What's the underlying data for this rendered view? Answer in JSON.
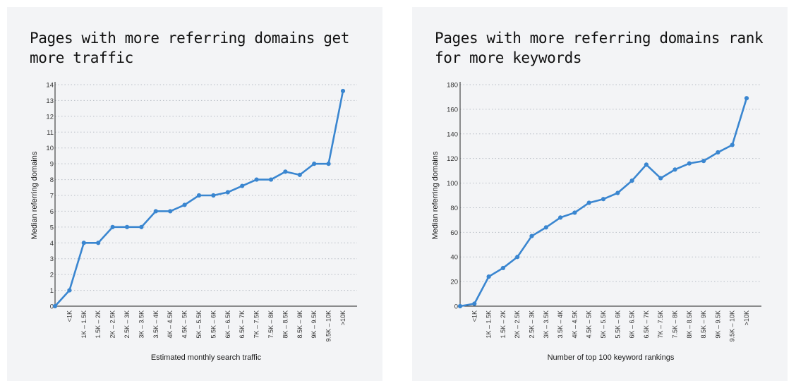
{
  "chart_data": [
    {
      "type": "line",
      "title": "Pages with more referring domains get more traffic",
      "xlabel": "Estimated monthly search traffic",
      "ylabel": "Median referring domains",
      "ylim": [
        0,
        14
      ],
      "yticks": [
        0,
        1,
        2,
        3,
        4,
        5,
        6,
        7,
        8,
        9,
        10,
        11,
        12,
        13,
        14
      ],
      "grid": "horizontal-dotted",
      "categories": [
        "",
        "<1K",
        "1K – 1.5K",
        "1.5K – 2K",
        "2K – 2.5K",
        "2.5K – 3K",
        "3K – 3.5K",
        "3.5K – 4K",
        "4K – 4.5K",
        "4.5K – 5K",
        "5K – 5.5K",
        "5.5K – 6K",
        "6K – 6.5K",
        "6.5K – 7K",
        "7K – 7.5K",
        "7.5K – 8K",
        "8K – 8.5K",
        "8.5K – 9K",
        "9K – 9.5K",
        "9.5K – 10K",
        ">10K"
      ],
      "series": [
        {
          "values": [
            0,
            1,
            4,
            4,
            5,
            5,
            5,
            6,
            6,
            6.4,
            7,
            7,
            7.2,
            7.6,
            8,
            8,
            8.5,
            8.3,
            9,
            9,
            13.6
          ]
        }
      ],
      "color": "#3a86d0"
    },
    {
      "type": "line",
      "title": "Pages with more referring domains rank for more keywords",
      "xlabel": "Number of top 100 keyword rankings",
      "ylabel": "Median referring domains",
      "ylim": [
        0,
        180
      ],
      "yticks": [
        0,
        20,
        40,
        60,
        80,
        100,
        120,
        140,
        160,
        180
      ],
      "grid": "horizontal-dotted",
      "categories": [
        "",
        "<1K",
        "1K – 1.5K",
        "1.5K – 2K",
        "2K – 2.5K",
        "2.5K – 3K",
        "3K – 3.5K",
        "3.5K – 4K",
        "4K – 4.5K",
        "4.5K – 5K",
        "5K – 5.5K",
        "5.5K – 6K",
        "6K – 6.5K",
        "6.5K – 7K",
        "7K – 7.5K",
        "7.5K – 8K",
        "8K – 8.5K",
        "8.5K – 9K",
        "9K – 9.5K",
        "9.5K – 10K",
        ">10K"
      ],
      "series": [
        {
          "values": [
            0,
            2,
            24,
            31,
            40,
            57,
            64,
            72,
            76,
            84,
            87,
            92,
            102,
            115,
            104,
            111,
            116,
            118,
            125,
            131,
            169
          ]
        }
      ],
      "color": "#3a86d0"
    }
  ]
}
